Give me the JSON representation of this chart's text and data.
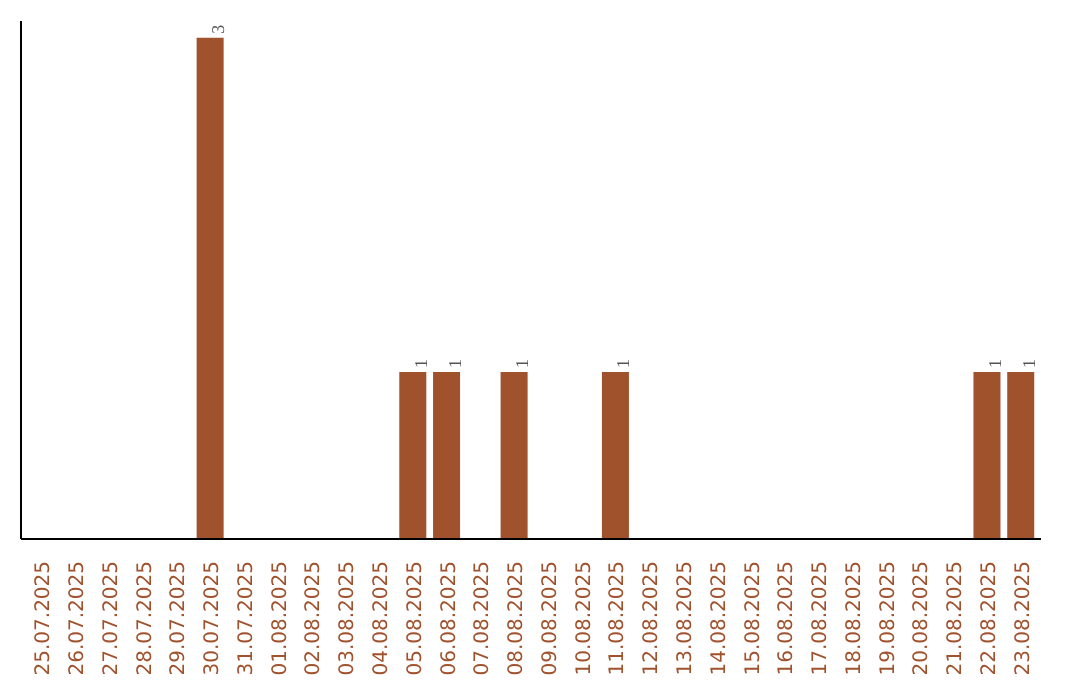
{
  "chart_data": {
    "type": "bar",
    "categories": [
      "25.07.2025",
      "26.07.2025",
      "27.07.2025",
      "28.07.2025",
      "29.07.2025",
      "30.07.2025",
      "31.07.2025",
      "01.08.2025",
      "02.08.2025",
      "03.08.2025",
      "04.08.2025",
      "05.08.2025",
      "06.08.2025",
      "07.08.2025",
      "08.08.2025",
      "09.08.2025",
      "10.08.2025",
      "11.08.2025",
      "12.08.2025",
      "13.08.2025",
      "14.08.2025",
      "15.08.2025",
      "16.08.2025",
      "17.08.2025",
      "18.08.2025",
      "19.08.2025",
      "20.08.2025",
      "21.08.2025",
      "22.08.2025",
      "23.08.2025"
    ],
    "values": [
      0,
      0,
      0,
      0,
      0,
      3,
      0,
      0,
      0,
      0,
      0,
      1,
      1,
      0,
      1,
      0,
      0,
      1,
      0,
      0,
      0,
      0,
      0,
      0,
      0,
      0,
      0,
      0,
      1,
      1
    ],
    "value_labels": [
      null,
      null,
      null,
      null,
      null,
      "3",
      null,
      null,
      null,
      null,
      null,
      "1",
      "1",
      null,
      "1",
      null,
      null,
      "1",
      null,
      null,
      null,
      null,
      null,
      null,
      null,
      null,
      null,
      null,
      "1",
      "1"
    ],
    "color": "#a0522d",
    "ylim": [
      0,
      3.1
    ],
    "tick_labels": "x",
    "grid": false
  }
}
